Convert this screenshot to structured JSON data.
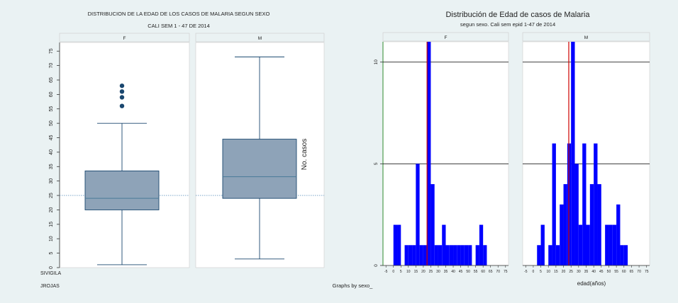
{
  "colors": {
    "background": "#eaf2f3",
    "panel_strip": "#eaf2f3",
    "box_fill": "#8ea3b8",
    "box_stroke": "#1a476f",
    "outlier": "#1a476f",
    "bars": "#0000ff",
    "reference_line": "#cc0000",
    "median_line": "#4a7a98"
  },
  "boxplot": {
    "title": "DISTRIBUCION DE LA EDAD DE LOS CASOS DE MALARIA SEGUN SEXO",
    "subtitle": "CALI SEM 1 - 47 DE 2014",
    "footnote_lines": [
      "SIVIGILA",
      "JROJAS"
    ]
  },
  "histogram": {
    "title": "Distribución de Edad de casos de Malaria",
    "subtitle": "segun sexo. Cali sem epid 1-47 de 2014",
    "ylabel": "No. casos",
    "xlabel": "edad(años)",
    "note": "Graphs by sexo_"
  },
  "chart_data": [
    {
      "type": "box",
      "title": "DISTRIBUCION DE LA EDAD DE LOS CASOS DE MALARIA SEGUN SEXO",
      "subtitle": "CALI SEM 1 - 47 DE 2014",
      "ylim": [
        0,
        78
      ],
      "y_ticks": [
        0,
        5,
        10,
        15,
        20,
        25,
        30,
        35,
        40,
        45,
        50,
        55,
        60,
        65,
        70,
        75
      ],
      "reference_line": 25,
      "panels": [
        {
          "name": "F",
          "min": 1,
          "q1": 20,
          "median": 24,
          "q3": 33.5,
          "max": 50,
          "outliers": [
            56,
            59,
            61,
            63
          ]
        },
        {
          "name": "M",
          "min": 3,
          "q1": 24,
          "median": 31.5,
          "q3": 44.5,
          "max": 73,
          "outliers": []
        }
      ]
    },
    {
      "type": "bar",
      "title": "Distribución de Edad de casos de Malaria",
      "subtitle": "segun sexo. Cali sem epid 1-47 de 2014",
      "ylabel": "No. casos",
      "xlabel": "edad(años)",
      "xlim": [
        -7,
        77
      ],
      "ylim": [
        0,
        11
      ],
      "x_ticks": [
        -5,
        0,
        5,
        10,
        15,
        20,
        25,
        30,
        35,
        40,
        45,
        50,
        55,
        60,
        65,
        70,
        75
      ],
      "y_ticks": [
        0,
        5,
        10
      ],
      "bin_width": 2.5,
      "panels": [
        {
          "name": "F",
          "reference_line": 22.5,
          "bins": [
            [
              0,
              2
            ],
            [
              2.5,
              2
            ],
            [
              5,
              0
            ],
            [
              7.5,
              1
            ],
            [
              10,
              1
            ],
            [
              12.5,
              1
            ],
            [
              15,
              5
            ],
            [
              17.5,
              1
            ],
            [
              20,
              1
            ],
            [
              22.5,
              11
            ],
            [
              25,
              4
            ],
            [
              27.5,
              1
            ],
            [
              30,
              1
            ],
            [
              32.5,
              2
            ],
            [
              35,
              1
            ],
            [
              37.5,
              1
            ],
            [
              40,
              1
            ],
            [
              42.5,
              1
            ],
            [
              45,
              1
            ],
            [
              47.5,
              1
            ],
            [
              50,
              1
            ],
            [
              52.5,
              0
            ],
            [
              55,
              1
            ],
            [
              57.5,
              2
            ],
            [
              60,
              1
            ]
          ]
        },
        {
          "name": "M",
          "reference_line": 23.5,
          "bins": [
            [
              2.5,
              1
            ],
            [
              5,
              2
            ],
            [
              7.5,
              0
            ],
            [
              10,
              1
            ],
            [
              12.5,
              6
            ],
            [
              15,
              1
            ],
            [
              17.5,
              3
            ],
            [
              20,
              4
            ],
            [
              22.5,
              6
            ],
            [
              25,
              11
            ],
            [
              27.5,
              5
            ],
            [
              30,
              2
            ],
            [
              32.5,
              6
            ],
            [
              35,
              2
            ],
            [
              37.5,
              4
            ],
            [
              40,
              6
            ],
            [
              42.5,
              4
            ],
            [
              45,
              0
            ],
            [
              47.5,
              2
            ],
            [
              50,
              2
            ],
            [
              52.5,
              2
            ],
            [
              55,
              3
            ],
            [
              57.5,
              1
            ],
            [
              60,
              1
            ]
          ]
        }
      ]
    }
  ]
}
